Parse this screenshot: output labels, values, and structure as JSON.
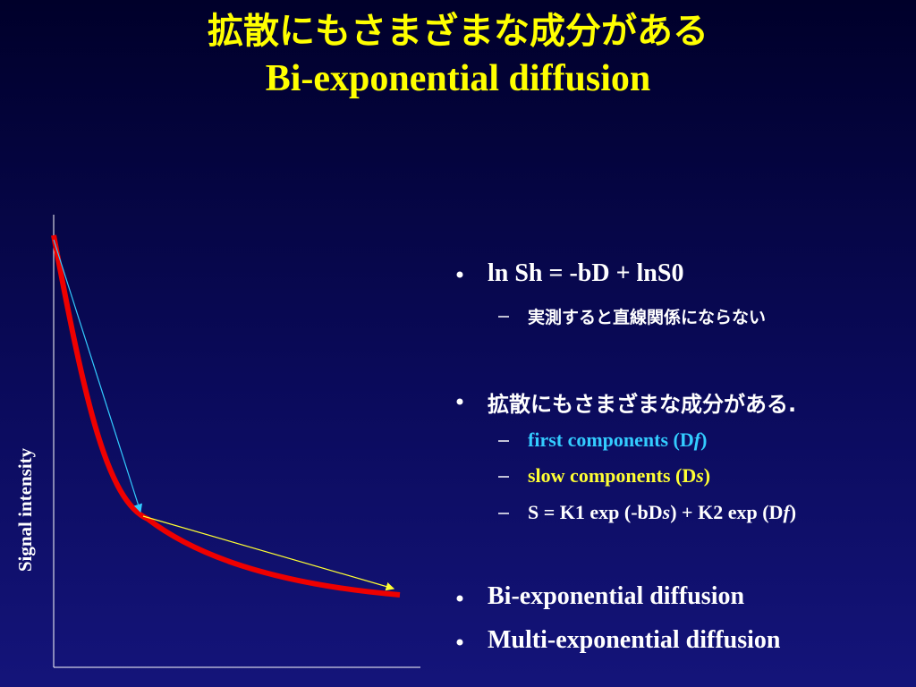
{
  "header": {
    "title": "拡散にもさまざまな成分がある",
    "subtitle": "Bi-exponential diffusion"
  },
  "figure": {
    "y_axis_label": "Signal intensity"
  },
  "bullets": [
    {
      "text": "ln Sh = -bD + lnS0",
      "sub": [
        {
          "parts": [
            "実測すると直線関係にならない"
          ]
        }
      ]
    },
    {
      "text": "拡散にもさまざまな成分がある.",
      "sub": [
        {
          "parts": [
            "first components (D",
            "f",
            ")"
          ]
        },
        {
          "parts": [
            "slow components (D",
            "s",
            ")"
          ]
        },
        {
          "parts": [
            "S = K1 exp (-bD",
            "s",
            ") + K2 exp (D",
            "f",
            ")"
          ]
        }
      ]
    },
    {
      "text": "Bi-exponential diffusion"
    },
    {
      "text": "Multi-exponential diffusion"
    }
  ]
}
